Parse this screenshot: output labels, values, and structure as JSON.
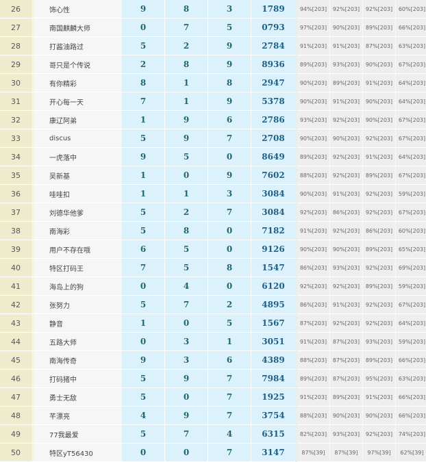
{
  "rows": [
    [
      "26",
      "饰心性",
      "9",
      "8",
      "3",
      "1789",
      "94%[203]",
      "92%[203]",
      "92%[203]",
      "60%[203]"
    ],
    [
      "27",
      "南国麒麟大师",
      "0",
      "7",
      "5",
      "0793",
      "97%[203]",
      "90%[203]",
      "89%[203]",
      "66%[203]"
    ],
    [
      "28",
      "打酱油路过",
      "5",
      "2",
      "9",
      "2784",
      "91%[203]",
      "91%[203]",
      "87%[203]",
      "63%[203]"
    ],
    [
      "29",
      "哥只是个传说",
      "2",
      "8",
      "9",
      "8936",
      "89%[203]",
      "93%[203]",
      "90%[203]",
      "67%[203]"
    ],
    [
      "30",
      "有你精彩",
      "8",
      "1",
      "8",
      "2947",
      "90%[203]",
      "89%[203]",
      "91%[203]",
      "64%[203]"
    ],
    [
      "31",
      "开心每一天",
      "7",
      "1",
      "9",
      "5378",
      "90%[203]",
      "91%[203]",
      "90%[203]",
      "64%[203]"
    ],
    [
      "32",
      "康辽阿弟",
      "1",
      "9",
      "6",
      "2786",
      "93%[203]",
      "92%[203]",
      "90%[203]",
      "67%[203]"
    ],
    [
      "33",
      "discus",
      "5",
      "9",
      "7",
      "2708",
      "90%[203]",
      "90%[203]",
      "92%[203]",
      "67%[203]"
    ],
    [
      "34",
      "一虎落中",
      "9",
      "5",
      "0",
      "8649",
      "89%[203]",
      "92%[203]",
      "91%[203]",
      "64%[203]"
    ],
    [
      "35",
      "吴新基",
      "1",
      "0",
      "9",
      "7602",
      "88%[203]",
      "92%[203]",
      "89%[203]",
      "67%[203]"
    ],
    [
      "36",
      "哇哇扣",
      "1",
      "1",
      "3",
      "3084",
      "90%[203]",
      "91%[203]",
      "92%[203]",
      "59%[203]"
    ],
    [
      "37",
      "刘德华他爹",
      "5",
      "2",
      "7",
      "3084",
      "92%[203]",
      "86%[203]",
      "92%[203]",
      "67%[203]"
    ],
    [
      "38",
      "南海彩",
      "5",
      "8",
      "0",
      "7182",
      "91%[203]",
      "92%[203]",
      "86%[203]",
      "60%[203]"
    ],
    [
      "39",
      "用户不存在哦",
      "6",
      "5",
      "0",
      "9126",
      "90%[203]",
      "90%[203]",
      "89%[203]",
      "65%[203]"
    ],
    [
      "40",
      "特区打码王",
      "7",
      "5",
      "8",
      "1547",
      "86%[203]",
      "93%[203]",
      "92%[203]",
      "69%[203]"
    ],
    [
      "41",
      "海岛上的狗",
      "0",
      "4",
      "0",
      "6120",
      "92%[203]",
      "92%[203]",
      "89%[203]",
      "59%[203]"
    ],
    [
      "42",
      "张努力",
      "5",
      "7",
      "2",
      "4895",
      "86%[203]",
      "91%[203]",
      "92%[203]",
      "67%[203]"
    ],
    [
      "43",
      "静音",
      "1",
      "0",
      "5",
      "1567",
      "87%[203]",
      "92%[203]",
      "92%[203]",
      "64%[203]"
    ],
    [
      "44",
      "五路大师",
      "0",
      "3",
      "1",
      "3051",
      "91%[203]",
      "87%[203]",
      "93%[203]",
      "59%[203]"
    ],
    [
      "45",
      "南海传奇",
      "9",
      "3",
      "6",
      "4389",
      "88%[203]",
      "87%[203]",
      "89%[203]",
      "66%[203]"
    ],
    [
      "46",
      "打码猪中",
      "5",
      "9",
      "7",
      "7984",
      "89%[203]",
      "87%[203]",
      "95%[203]",
      "63%[203]"
    ],
    [
      "47",
      "勇士无敌",
      "5",
      "0",
      "7",
      "1925",
      "91%[203]",
      "89%[203]",
      "91%[203]",
      "66%[203]"
    ],
    [
      "48",
      "芊漂亮",
      "4",
      "9",
      "7",
      "3754",
      "88%[203]",
      "90%[203]",
      "90%[203]",
      "66%[203]"
    ],
    [
      "49",
      "77我最爱",
      "5",
      "7",
      "4",
      "6315",
      "82%[203]",
      "93%[203]",
      "92%[203]",
      "74%[203]"
    ],
    [
      "50",
      "特区yT56430",
      "0",
      "0",
      "7",
      "3147",
      "87%[39]",
      "87%[39]",
      "97%[39]",
      "62%[39]"
    ]
  ]
}
